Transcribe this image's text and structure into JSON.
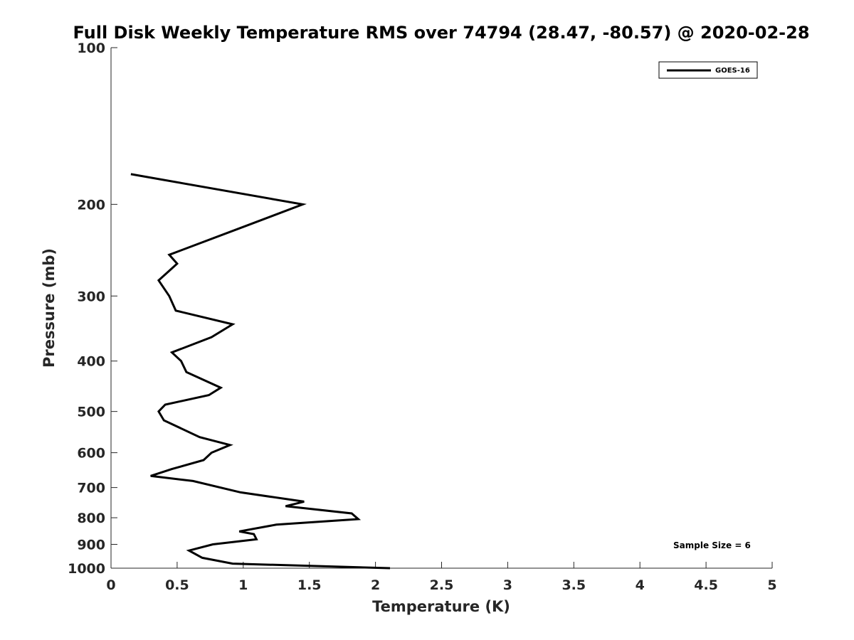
{
  "chart_data": {
    "type": "line",
    "title": "Full Disk Weekly Temperature RMS over 74794 (28.47, -80.57) @ 2020-02-28",
    "xlabel": "Temperature (K)",
    "ylabel": "Pressure (mb)",
    "xlim": [
      0,
      5
    ],
    "ylim": [
      100,
      1000
    ],
    "y_scale": "log",
    "y_reversed": true,
    "xticks": [
      0,
      0.5,
      1,
      1.5,
      2,
      2.5,
      3,
      3.5,
      4,
      4.5,
      5
    ],
    "xtick_labels": [
      "0",
      "0.5",
      "1",
      "1.5",
      "2",
      "2.5",
      "3",
      "3.5",
      "4",
      "4.5",
      "5"
    ],
    "yticks": [
      100,
      200,
      300,
      400,
      500,
      600,
      700,
      800,
      900,
      1000
    ],
    "ytick_labels": [
      "100",
      "200",
      "300",
      "400",
      "500",
      "600",
      "700",
      "800",
      "900",
      "1000"
    ],
    "grid": false,
    "legend_position": "top-right",
    "annotation": "Sample Size = 6",
    "series": [
      {
        "name": "GOES-16",
        "color": "#000000",
        "points": [
          {
            "x": 2.11,
            "y": 1000
          },
          {
            "x": 0.92,
            "y": 980
          },
          {
            "x": 0.69,
            "y": 955
          },
          {
            "x": 0.59,
            "y": 925
          },
          {
            "x": 0.77,
            "y": 900
          },
          {
            "x": 1.1,
            "y": 880
          },
          {
            "x": 1.08,
            "y": 860
          },
          {
            "x": 0.97,
            "y": 850
          },
          {
            "x": 1.25,
            "y": 825
          },
          {
            "x": 1.87,
            "y": 805
          },
          {
            "x": 1.82,
            "y": 785
          },
          {
            "x": 1.32,
            "y": 760
          },
          {
            "x": 1.46,
            "y": 745
          },
          {
            "x": 0.98,
            "y": 715
          },
          {
            "x": 0.62,
            "y": 680
          },
          {
            "x": 0.3,
            "y": 665
          },
          {
            "x": 0.46,
            "y": 645
          },
          {
            "x": 0.7,
            "y": 620
          },
          {
            "x": 0.76,
            "y": 600
          },
          {
            "x": 0.9,
            "y": 580
          },
          {
            "x": 0.67,
            "y": 560
          },
          {
            "x": 0.4,
            "y": 520
          },
          {
            "x": 0.36,
            "y": 500
          },
          {
            "x": 0.41,
            "y": 485
          },
          {
            "x": 0.74,
            "y": 465
          },
          {
            "x": 0.83,
            "y": 450
          },
          {
            "x": 0.57,
            "y": 420
          },
          {
            "x": 0.53,
            "y": 400
          },
          {
            "x": 0.46,
            "y": 385
          },
          {
            "x": 0.76,
            "y": 360
          },
          {
            "x": 0.92,
            "y": 340
          },
          {
            "x": 0.49,
            "y": 320
          },
          {
            "x": 0.44,
            "y": 300
          },
          {
            "x": 0.36,
            "y": 280
          },
          {
            "x": 0.5,
            "y": 260
          },
          {
            "x": 0.44,
            "y": 250
          },
          {
            "x": 1.02,
            "y": 220
          },
          {
            "x": 1.45,
            "y": 200
          },
          {
            "x": 0.15,
            "y": 175
          }
        ]
      }
    ]
  }
}
